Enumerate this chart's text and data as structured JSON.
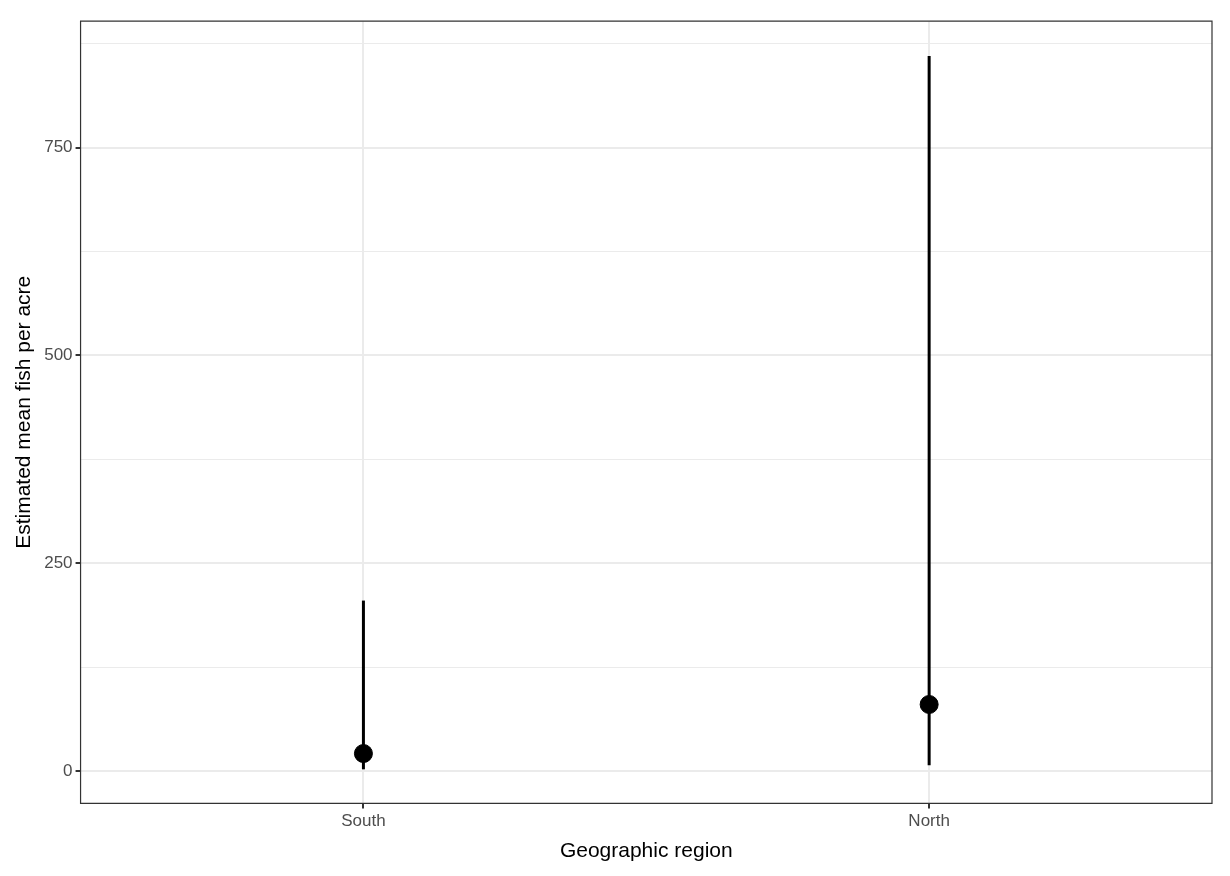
{
  "chart_data": {
    "type": "scatter",
    "xlabel": "Geographic region",
    "ylabel": "Estimated mean fish per acre",
    "categories": [
      "South",
      "North"
    ],
    "values": [
      21,
      80
    ],
    "errors": [
      [
        2,
        205
      ],
      [
        7,
        860
      ]
    ],
    "color": "#000000",
    "ylim": [
      -39,
      902
    ],
    "yticks": [
      0,
      {
        "value": 125,
        "label": null
      },
      250,
      {
        "value": 375,
        "label": null
      },
      500,
      {
        "value": 625,
        "label": null
      },
      750,
      {
        "value": 875,
        "label": null
      }
    ],
    "grid": true,
    "marker": "circle"
  }
}
